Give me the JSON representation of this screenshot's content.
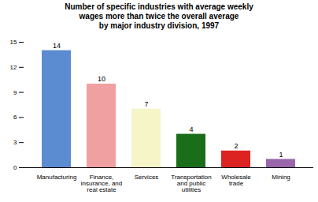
{
  "chart_data": {
    "type": "bar",
    "title": "Number of specific industries with average weekly\nwages more than twice the overall average\nby major industry division, 1997",
    "categories": [
      "Manufacturing",
      "Finance,\ninsurance, and\nreal estate",
      "Services",
      "Transportation\nand public\nutilities",
      "Wholesale\ntrade",
      "Mining"
    ],
    "values": [
      14,
      10,
      7,
      4,
      2,
      1
    ],
    "colors": [
      "#5B8BD0",
      "#F0A0A0",
      "#F5F5C8",
      "#1A6E1A",
      "#DD2222",
      "#9966AA"
    ],
    "ylim": [
      0,
      15
    ],
    "yticks": [
      0,
      3,
      6,
      9,
      12,
      15
    ],
    "grid": false,
    "data_labels": true
  }
}
